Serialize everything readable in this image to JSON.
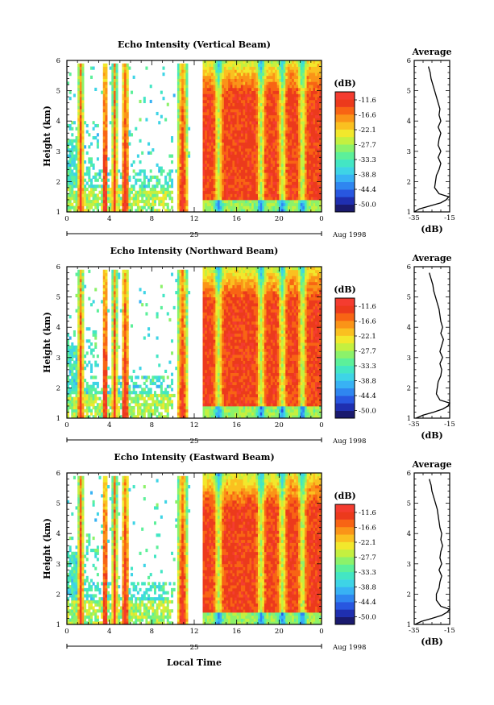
{
  "figure": {
    "xlabel_bottom": "Local Time",
    "date_label": "Aug 1998",
    "day_label": "25"
  },
  "colorbar": {
    "unit_label": "(dB)",
    "levels": [
      "-11.6",
      "-16.6",
      "-22.1",
      "-27.7",
      "-33.3",
      "-38.8",
      "-44.4",
      "-50.0"
    ],
    "colors": [
      "#1a1a6e",
      "#1f2fb0",
      "#2857e0",
      "#2f86f0",
      "#38b2f4",
      "#3ed4e6",
      "#43e6c4",
      "#5cf09a",
      "#8cf26a",
      "#c4f040",
      "#f2e82c",
      "#fac020",
      "#fa9418",
      "#f86414",
      "#ec3a1c",
      "#f43c30"
    ]
  },
  "panels": [
    {
      "title": "Echo Intensity (Vertical Beam)",
      "ylabel": "Height (km)",
      "avg_title": "Average",
      "avg_xlabel": "(dB)"
    },
    {
      "title": "Echo Intensity (Northward Beam)",
      "ylabel": "Height (km)",
      "avg_title": "Average",
      "avg_xlabel": "(dB)"
    },
    {
      "title": "Echo Intensity (Eastward Beam)",
      "ylabel": "Height (km)",
      "avg_title": "Average",
      "avg_xlabel": "(dB)"
    }
  ],
  "chart_data": [
    {
      "type": "heatmap",
      "title": "Echo Intensity (Vertical Beam)",
      "xlabel": "",
      "ylabel": "Height (km)",
      "xlim": [
        0,
        24
      ],
      "ylim": [
        1,
        6
      ],
      "x_ticks": [
        "0",
        "4",
        "8",
        "12",
        "16",
        "20",
        "0"
      ],
      "y_ticks": [
        "1",
        "2",
        "3",
        "4",
        "5",
        "6"
      ],
      "colorbar_label": "(dB)",
      "colorbar_levels": [
        -11.6,
        -16.6,
        -22.1,
        -27.7,
        -33.3,
        -38.8,
        -44.4,
        -50.0
      ],
      "data_gap_hours": [
        11.5,
        12.7
      ],
      "average_profile": {
        "title": "Average",
        "xlabel": "(dB)",
        "xlim": [
          -35,
          -15
        ],
        "x_ticks": [
          "-35",
          "-15"
        ],
        "ylim": [
          1,
          6
        ],
        "y_ticks": [
          "1",
          "2",
          "3",
          "4",
          "5",
          "6"
        ],
        "height_km": [
          1.0,
          1.1,
          1.2,
          1.3,
          1.4,
          1.5,
          1.6,
          1.8,
          2.0,
          2.2,
          2.4,
          2.6,
          2.8,
          3.0,
          3.2,
          3.4,
          3.6,
          3.8,
          4.0,
          4.2,
          4.4,
          4.6,
          4.8,
          5.0,
          5.2,
          5.4,
          5.6,
          5.8
        ],
        "db": [
          -35.0,
          -32.0,
          -26.0,
          -20.0,
          -17.0,
          -15.5,
          -21.0,
          -23.5,
          -23.0,
          -22.5,
          -21.0,
          -20.0,
          -21.5,
          -20.0,
          -21.5,
          -21.0,
          -20.0,
          -21.5,
          -20.0,
          -21.0,
          -20.5,
          -21.5,
          -22.5,
          -23.5,
          -24.5,
          -25.5,
          -26.0,
          -27.0
        ]
      }
    },
    {
      "type": "heatmap",
      "title": "Echo Intensity (Northward Beam)",
      "xlabel": "",
      "ylabel": "Height (km)",
      "xlim": [
        0,
        24
      ],
      "ylim": [
        1,
        6
      ],
      "x_ticks": [
        "0",
        "4",
        "8",
        "12",
        "16",
        "20",
        "0"
      ],
      "y_ticks": [
        "1",
        "2",
        "3",
        "4",
        "5",
        "6"
      ],
      "colorbar_label": "(dB)",
      "colorbar_levels": [
        -11.6,
        -16.6,
        -22.1,
        -27.7,
        -33.3,
        -38.8,
        -44.4,
        -50.0
      ],
      "data_gap_hours": [
        11.5,
        12.7
      ],
      "average_profile": {
        "title": "Average",
        "xlabel": "(dB)",
        "xlim": [
          -35,
          -15
        ],
        "x_ticks": [
          "-35",
          "-15"
        ],
        "ylim": [
          1,
          6
        ],
        "y_ticks": [
          "1",
          "2",
          "3",
          "4",
          "5",
          "6"
        ],
        "height_km": [
          1.0,
          1.1,
          1.2,
          1.3,
          1.4,
          1.5,
          1.6,
          1.8,
          2.0,
          2.2,
          2.4,
          2.6,
          2.8,
          3.0,
          3.2,
          3.4,
          3.6,
          3.8,
          4.0,
          4.2,
          4.4,
          4.6,
          4.8,
          5.0,
          5.2,
          5.4,
          5.6,
          5.8
        ],
        "db": [
          -34.0,
          -30.0,
          -24.0,
          -19.0,
          -16.0,
          -15.0,
          -20.5,
          -22.5,
          -22.0,
          -21.5,
          -20.0,
          -19.5,
          -20.5,
          -19.0,
          -20.5,
          -19.5,
          -18.5,
          -20.0,
          -19.0,
          -20.0,
          -20.5,
          -21.0,
          -22.0,
          -23.0,
          -24.0,
          -24.5,
          -25.5,
          -26.5
        ]
      }
    },
    {
      "type": "heatmap",
      "title": "Echo Intensity (Eastward Beam)",
      "xlabel": "Local Time",
      "ylabel": "Height (km)",
      "xlim": [
        0,
        24
      ],
      "ylim": [
        1,
        6
      ],
      "x_ticks": [
        "0",
        "4",
        "8",
        "12",
        "16",
        "20",
        "0"
      ],
      "y_ticks": [
        "1",
        "2",
        "3",
        "4",
        "5",
        "6"
      ],
      "colorbar_label": "(dB)",
      "colorbar_levels": [
        -11.6,
        -16.6,
        -22.1,
        -27.7,
        -33.3,
        -38.8,
        -44.4,
        -50.0
      ],
      "data_gap_hours": [
        11.5,
        12.7
      ],
      "average_profile": {
        "title": "Average",
        "xlabel": "(dB)",
        "xlim": [
          -35,
          -15
        ],
        "x_ticks": [
          "-35",
          "-15"
        ],
        "ylim": [
          1,
          6
        ],
        "y_ticks": [
          "1",
          "2",
          "3",
          "4",
          "5",
          "6"
        ],
        "height_km": [
          1.0,
          1.1,
          1.2,
          1.3,
          1.4,
          1.5,
          1.6,
          1.8,
          2.0,
          2.2,
          2.4,
          2.6,
          2.8,
          3.0,
          3.2,
          3.4,
          3.6,
          3.8,
          4.0,
          4.2,
          4.4,
          4.6,
          4.8,
          5.0,
          5.2,
          5.4,
          5.6,
          5.8
        ],
        "db": [
          -34.5,
          -31.0,
          -25.0,
          -19.5,
          -16.5,
          -15.0,
          -20.0,
          -22.5,
          -22.5,
          -21.0,
          -20.5,
          -19.5,
          -21.0,
          -19.5,
          -20.5,
          -20.0,
          -19.0,
          -20.0,
          -19.5,
          -20.5,
          -21.0,
          -21.5,
          -22.0,
          -23.0,
          -24.0,
          -25.0,
          -25.5,
          -26.5
        ]
      }
    }
  ]
}
